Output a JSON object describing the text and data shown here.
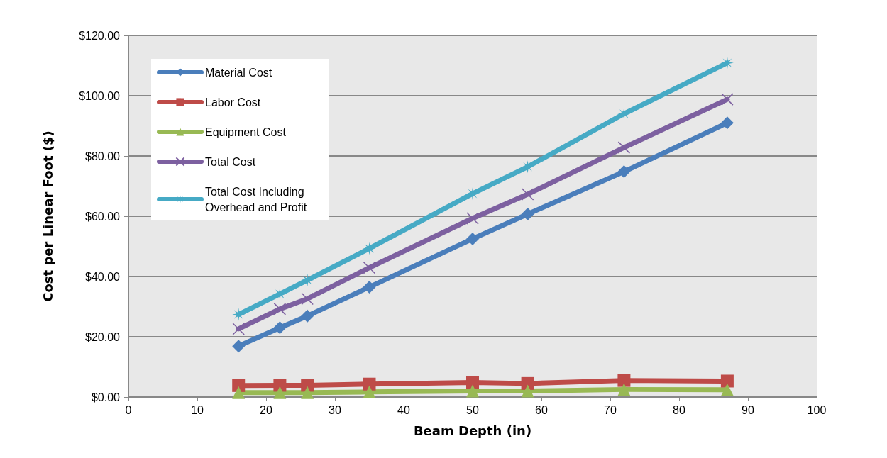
{
  "chart_data": {
    "type": "line",
    "xlabel": "Beam Depth (in)",
    "ylabel": "Cost per Linear Foot ($)",
    "x": [
      16,
      22,
      26,
      35,
      50,
      58,
      72,
      87
    ],
    "series": [
      {
        "name": "Material Cost",
        "color": "#4a7ebb",
        "marker": "diamond",
        "values": [
          16.9,
          23.0,
          26.9,
          36.5,
          52.5,
          60.7,
          74.8,
          91.0
        ]
      },
      {
        "name": "Labor Cost",
        "color": "#be4b48",
        "marker": "square",
        "values": [
          3.8,
          3.9,
          3.9,
          4.3,
          4.8,
          4.5,
          5.5,
          5.3
        ]
      },
      {
        "name": "Equipment Cost",
        "color": "#98b954",
        "marker": "triangle",
        "values": [
          1.5,
          1.5,
          1.5,
          1.7,
          2.0,
          2.0,
          2.5,
          2.4
        ]
      },
      {
        "name": "Total Cost",
        "color": "#7d60a0",
        "marker": "cross",
        "values": [
          22.6,
          29.2,
          32.6,
          42.9,
          59.3,
          67.3,
          82.8,
          98.8
        ]
      },
      {
        "name": "Total Cost Including Overhead and Profit",
        "color": "#46aac5",
        "marker": "star",
        "values": [
          27.4,
          34.2,
          38.8,
          49.3,
          67.5,
          76.4,
          94.0,
          110.9
        ]
      }
    ],
    "xlim": [
      0,
      100
    ],
    "xticks": [
      0,
      10,
      20,
      30,
      40,
      50,
      60,
      70,
      80,
      90,
      100
    ],
    "ylim": [
      0,
      120
    ],
    "yticks": [
      {
        "value": 0,
        "label": "$0.00"
      },
      {
        "value": 20,
        "label": "$20.00"
      },
      {
        "value": 40,
        "label": "$40.00"
      },
      {
        "value": 60,
        "label": "$60.00"
      },
      {
        "value": 80,
        "label": "$80.00"
      },
      {
        "value": 100,
        "label": "$100.00"
      },
      {
        "value": 120,
        "label": "$120.00"
      }
    ],
    "grid": "y",
    "legend": "top left"
  }
}
